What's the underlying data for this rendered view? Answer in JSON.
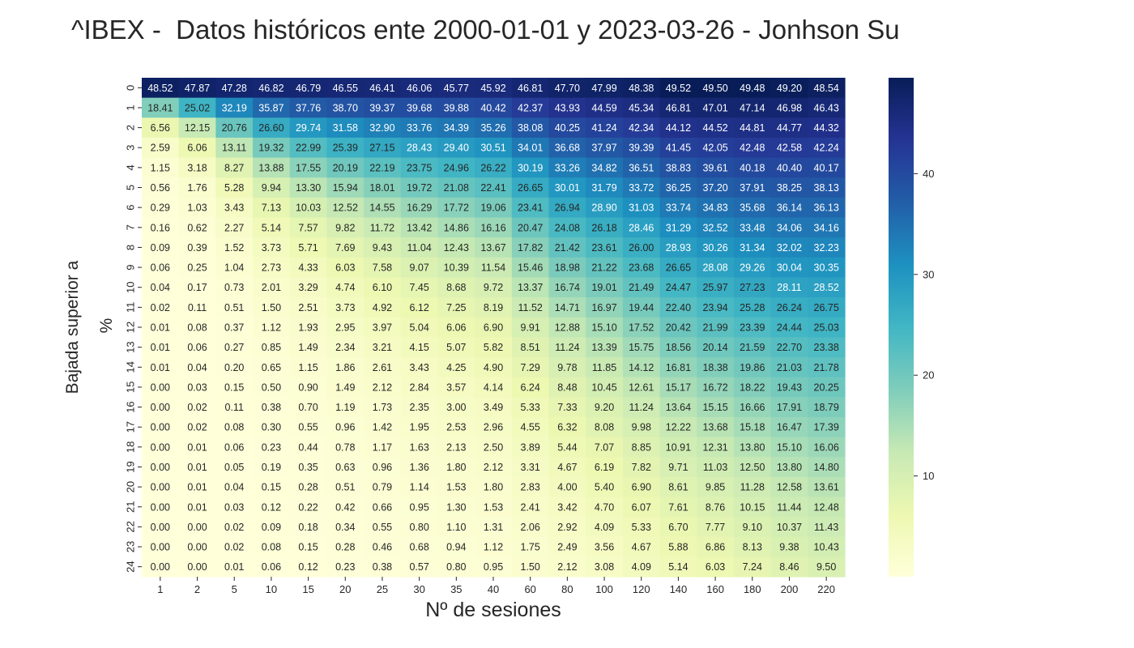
{
  "chart_data": {
    "type": "heatmap",
    "title": "^IBEX -  Datos históricos ente 2000-01-01 y 2023-03-26 - Jonhson Su",
    "xlabel": "Nº de sesiones",
    "ylabel_line1": "Bajada superior a",
    "ylabel_line2": "%",
    "colormap": "YlGnBu",
    "colorbar_range": [
      0,
      49.52
    ],
    "colorbar_ticks": [
      10,
      20,
      30,
      40
    ],
    "x": [
      "1",
      "2",
      "5",
      "10",
      "15",
      "20",
      "25",
      "30",
      "35",
      "40",
      "60",
      "80",
      "100",
      "120",
      "140",
      "160",
      "180",
      "200",
      "220"
    ],
    "y": [
      "0",
      "1",
      "2",
      "3",
      "4",
      "5",
      "6",
      "7",
      "8",
      "9",
      "10",
      "11",
      "12",
      "13",
      "14",
      "15",
      "16",
      "17",
      "18",
      "19",
      "20",
      "21",
      "22",
      "23",
      "24"
    ],
    "values": [
      [
        48.52,
        47.87,
        47.28,
        46.82,
        46.79,
        46.55,
        46.41,
        46.06,
        45.77,
        45.92,
        46.81,
        47.7,
        47.99,
        48.38,
        49.52,
        49.5,
        49.48,
        49.2,
        48.54
      ],
      [
        18.41,
        25.02,
        32.19,
        35.87,
        37.76,
        38.7,
        39.37,
        39.68,
        39.88,
        40.42,
        42.37,
        43.93,
        44.59,
        45.34,
        46.81,
        47.01,
        47.14,
        46.98,
        46.43
      ],
      [
        6.56,
        12.15,
        20.76,
        26.6,
        29.74,
        31.58,
        32.9,
        33.76,
        34.39,
        35.26,
        38.08,
        40.25,
        41.24,
        42.34,
        44.12,
        44.52,
        44.81,
        44.77,
        44.32
      ],
      [
        2.59,
        6.06,
        13.11,
        19.32,
        22.99,
        25.39,
        27.15,
        28.43,
        29.4,
        30.51,
        34.01,
        36.68,
        37.97,
        39.39,
        41.45,
        42.05,
        42.48,
        42.58,
        42.24
      ],
      [
        1.15,
        3.18,
        8.27,
        13.88,
        17.55,
        20.19,
        22.19,
        23.75,
        24.96,
        26.22,
        30.19,
        33.26,
        34.82,
        36.51,
        38.83,
        39.61,
        40.18,
        40.4,
        40.17
      ],
      [
        0.56,
        1.76,
        5.28,
        9.94,
        13.3,
        15.94,
        18.01,
        19.72,
        21.08,
        22.41,
        26.65,
        30.01,
        31.79,
        33.72,
        36.25,
        37.2,
        37.91,
        38.25,
        38.13
      ],
      [
        0.29,
        1.03,
        3.43,
        7.13,
        10.03,
        12.52,
        14.55,
        16.29,
        17.72,
        19.06,
        23.41,
        26.94,
        28.9,
        31.03,
        33.74,
        34.83,
        35.68,
        36.14,
        36.13
      ],
      [
        0.16,
        0.62,
        2.27,
        5.14,
        7.57,
        9.82,
        11.72,
        13.42,
        14.86,
        16.16,
        20.47,
        24.08,
        26.18,
        28.46,
        31.29,
        32.52,
        33.48,
        34.06,
        34.16
      ],
      [
        0.09,
        0.39,
        1.52,
        3.73,
        5.71,
        7.69,
        9.43,
        11.04,
        12.43,
        13.67,
        17.82,
        21.42,
        23.61,
        26.0,
        28.93,
        30.26,
        31.34,
        32.02,
        32.23
      ],
      [
        0.06,
        0.25,
        1.04,
        2.73,
        4.33,
        6.03,
        7.58,
        9.07,
        10.39,
        11.54,
        15.46,
        18.98,
        21.22,
        23.68,
        26.65,
        28.08,
        29.26,
        30.04,
        30.35
      ],
      [
        0.04,
        0.17,
        0.73,
        2.01,
        3.29,
        4.74,
        6.1,
        7.45,
        8.68,
        9.72,
        13.37,
        16.74,
        19.01,
        21.49,
        24.47,
        25.97,
        27.23,
        28.11,
        28.52
      ],
      [
        0.02,
        0.11,
        0.51,
        1.5,
        2.51,
        3.73,
        4.92,
        6.12,
        7.25,
        8.19,
        11.52,
        14.71,
        16.97,
        19.44,
        22.4,
        23.94,
        25.28,
        26.24,
        26.75
      ],
      [
        0.01,
        0.08,
        0.37,
        1.12,
        1.93,
        2.95,
        3.97,
        5.04,
        6.06,
        6.9,
        9.91,
        12.88,
        15.1,
        17.52,
        20.42,
        21.99,
        23.39,
        24.44,
        25.03
      ],
      [
        0.01,
        0.06,
        0.27,
        0.85,
        1.49,
        2.34,
        3.21,
        4.15,
        5.07,
        5.82,
        8.51,
        11.24,
        13.39,
        15.75,
        18.56,
        20.14,
        21.59,
        22.7,
        23.38
      ],
      [
        0.01,
        0.04,
        0.2,
        0.65,
        1.15,
        1.86,
        2.61,
        3.43,
        4.25,
        4.9,
        7.29,
        9.78,
        11.85,
        14.12,
        16.81,
        18.38,
        19.86,
        21.03,
        21.78
      ],
      [
        0.0,
        0.03,
        0.15,
        0.5,
        0.9,
        1.49,
        2.12,
        2.84,
        3.57,
        4.14,
        6.24,
        8.48,
        10.45,
        12.61,
        15.17,
        16.72,
        18.22,
        19.43,
        20.25
      ],
      [
        0.0,
        0.02,
        0.11,
        0.38,
        0.7,
        1.19,
        1.73,
        2.35,
        3.0,
        3.49,
        5.33,
        7.33,
        9.2,
        11.24,
        13.64,
        15.15,
        16.66,
        17.91,
        18.79
      ],
      [
        0.0,
        0.02,
        0.08,
        0.3,
        0.55,
        0.96,
        1.42,
        1.95,
        2.53,
        2.96,
        4.55,
        6.32,
        8.08,
        9.98,
        12.22,
        13.68,
        15.18,
        16.47,
        17.39
      ],
      [
        0.0,
        0.01,
        0.06,
        0.23,
        0.44,
        0.78,
        1.17,
        1.63,
        2.13,
        2.5,
        3.89,
        5.44,
        7.07,
        8.85,
        10.91,
        12.31,
        13.8,
        15.1,
        16.06
      ],
      [
        0.0,
        0.01,
        0.05,
        0.19,
        0.35,
        0.63,
        0.96,
        1.36,
        1.8,
        2.12,
        3.31,
        4.67,
        6.19,
        7.82,
        9.71,
        11.03,
        12.5,
        13.8,
        14.8
      ],
      [
        0.0,
        0.01,
        0.04,
        0.15,
        0.28,
        0.51,
        0.79,
        1.14,
        1.53,
        1.8,
        2.83,
        4.0,
        5.4,
        6.9,
        8.61,
        9.85,
        11.28,
        12.58,
        13.61
      ],
      [
        0.0,
        0.01,
        0.03,
        0.12,
        0.22,
        0.42,
        0.66,
        0.95,
        1.3,
        1.53,
        2.41,
        3.42,
        4.7,
        6.07,
        7.61,
        8.76,
        10.15,
        11.44,
        12.48
      ],
      [
        0.0,
        0.0,
        0.02,
        0.09,
        0.18,
        0.34,
        0.55,
        0.8,
        1.1,
        1.31,
        2.06,
        2.92,
        4.09,
        5.33,
        6.7,
        7.77,
        9.1,
        10.37,
        11.43
      ],
      [
        0.0,
        0.0,
        0.02,
        0.08,
        0.15,
        0.28,
        0.46,
        0.68,
        0.94,
        1.12,
        1.75,
        2.49,
        3.56,
        4.67,
        5.88,
        6.86,
        8.13,
        9.38,
        10.43
      ],
      [
        0.0,
        0.0,
        0.01,
        0.06,
        0.12,
        0.23,
        0.38,
        0.57,
        0.8,
        0.95,
        1.5,
        2.12,
        3.08,
        4.09,
        5.14,
        6.03,
        7.24,
        8.46,
        9.5
      ]
    ]
  }
}
